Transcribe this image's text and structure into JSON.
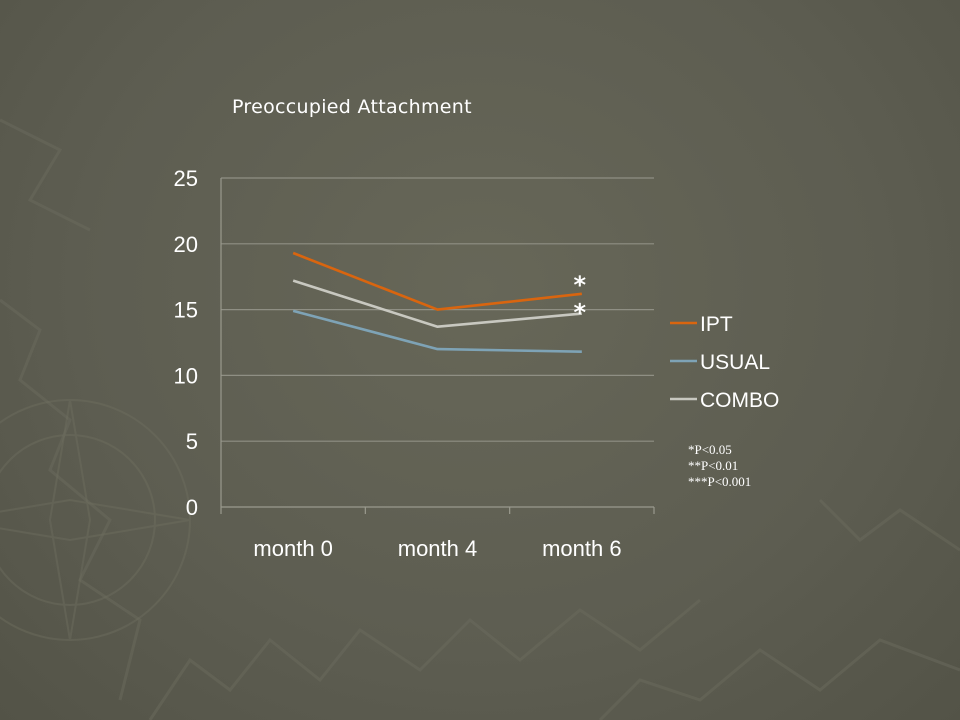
{
  "chart_data": {
    "type": "line",
    "title": "Preoccupied Attachment",
    "categories": [
      "month 0",
      "month 4",
      "month 6"
    ],
    "yticks": [
      "0",
      "5",
      "10",
      "15",
      "20",
      "25"
    ],
    "ylim": [
      0,
      25
    ],
    "grid": true,
    "legend_position": "right",
    "series": [
      {
        "name": "IPT",
        "color": "#d9650f",
        "values": [
          19.3,
          15.0,
          16.2
        ]
      },
      {
        "name": "USUAL",
        "color": "#7ea3b6",
        "values": [
          14.9,
          12.0,
          11.8
        ]
      },
      {
        "name": "COMBO",
        "color": "#c8c8c0",
        "values": [
          17.2,
          13.7,
          14.7
        ]
      }
    ],
    "annotations": [
      "*",
      "*"
    ],
    "footnotes": [
      "*P<0.05",
      "**P<0.01",
      "***P<0.001"
    ]
  }
}
